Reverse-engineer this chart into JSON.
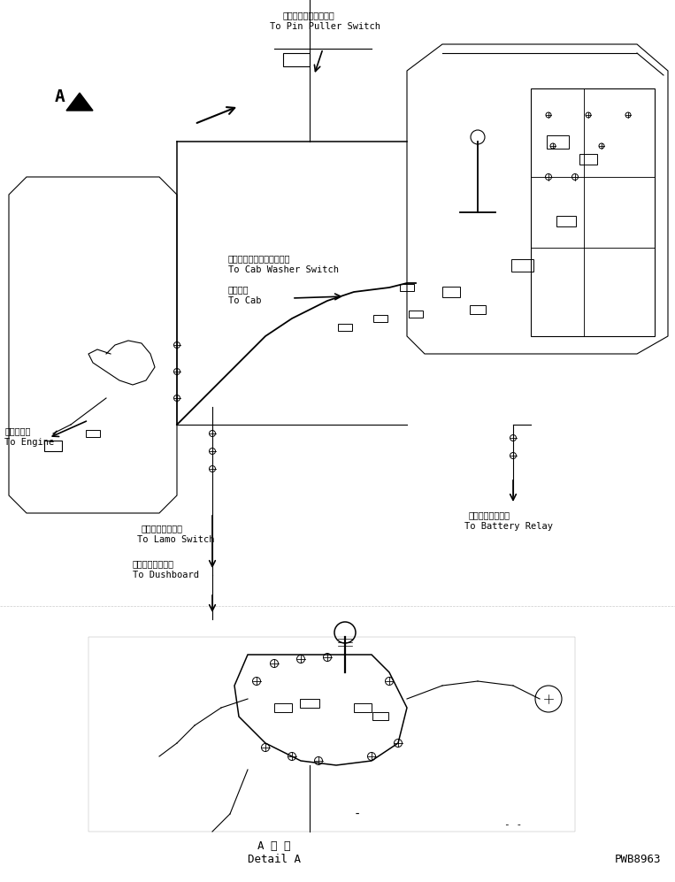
{
  "title": "",
  "background_color": "#ffffff",
  "line_color": "#000000",
  "text_color": "#000000",
  "labels": {
    "pin_puller_ja": "ピンプラースイッチへ",
    "pin_puller_en": "To Pin Puller Switch",
    "cab_washer_ja": "キャブウッシャスイッチへ",
    "cab_washer_en": "To Cab Washer Switch",
    "to_cab_ja": "キャブへ",
    "to_cab_en": "To Cab",
    "engine_ja": "エンジンへ",
    "engine_en": "To Engine",
    "lamp_ja": "ランプスイッチへ",
    "lamp_en": "To Lamo Switch",
    "dashboard_ja": "ダッシュボードへ",
    "dashboard_en": "To Dushboard",
    "battery_ja": "バッテリリレーへ",
    "battery_en": "To Battery Relay",
    "detail_ja": "A 詳 細",
    "detail_en": "Detail A",
    "part_number": "PWB8963"
  },
  "fig_width": 7.63,
  "fig_height": 9.97,
  "dpi": 100
}
